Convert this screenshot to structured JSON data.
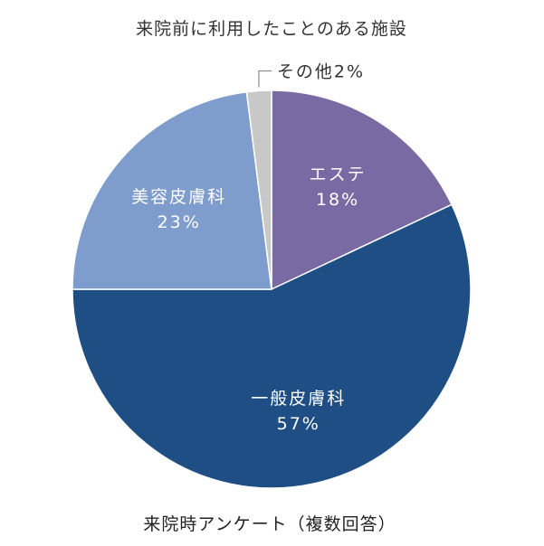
{
  "chart_data": {
    "type": "pie",
    "title": "来院前に利用したことのある施設",
    "footnote": "来院時アンケート（複数回答）",
    "slices": [
      {
        "label": "エステ",
        "value": 18,
        "value_text": "18%",
        "color": "#7a6aa3"
      },
      {
        "label": "一般皮膚科",
        "value": 57,
        "value_text": "57%",
        "color": "#1f4e85"
      },
      {
        "label": "美容皮膚科",
        "value": 23,
        "value_text": "23%",
        "color": "#7f9dcc"
      },
      {
        "label": "その他",
        "value": 2,
        "value_text": "2%",
        "color": "#c8c8c8"
      }
    ],
    "other_label_text": "その他2%",
    "start_angle_deg": 0,
    "direction": "clockwise"
  }
}
